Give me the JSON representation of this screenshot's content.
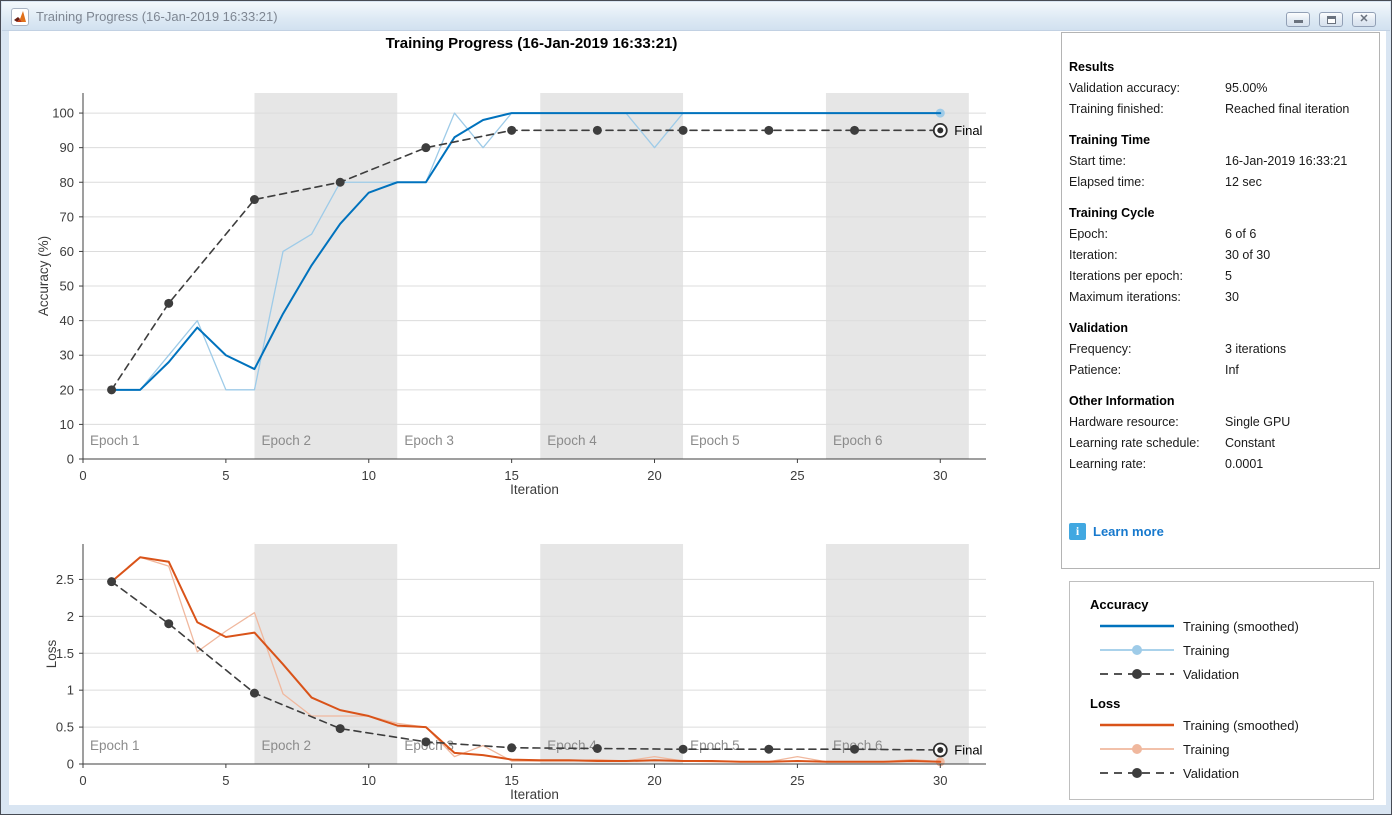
{
  "window": {
    "title": "Training Progress (16-Jan-2019 16:33:21)",
    "buttons": {
      "minimize": "minimize",
      "restore": "restore",
      "close": "✕"
    }
  },
  "main_title": "Training Progress (16-Jan-2019 16:33:21)",
  "info_panel": {
    "sections": [
      {
        "header": "Results",
        "rows": [
          [
            "Validation accuracy:",
            "95.00%"
          ],
          [
            "Training finished:",
            "Reached final iteration"
          ]
        ]
      },
      {
        "header": "Training Time",
        "rows": [
          [
            "Start time:",
            "16-Jan-2019 16:33:21"
          ],
          [
            "Elapsed time:",
            "12 sec"
          ]
        ]
      },
      {
        "header": "Training Cycle",
        "rows": [
          [
            "Epoch:",
            "6 of 6"
          ],
          [
            "Iteration:",
            "30 of 30"
          ],
          [
            "Iterations per epoch:",
            "5"
          ],
          [
            "Maximum iterations:",
            "30"
          ]
        ]
      },
      {
        "header": "Validation",
        "rows": [
          [
            "Frequency:",
            "3 iterations"
          ],
          [
            "Patience:",
            "Inf"
          ]
        ]
      },
      {
        "header": "Other Information",
        "rows": [
          [
            "Hardware resource:",
            "Single GPU"
          ],
          [
            "Learning rate schedule:",
            "Constant"
          ],
          [
            "Learning rate:",
            "0.0001"
          ]
        ]
      }
    ],
    "learn_more": "Learn more",
    "learn_more_icon": "i"
  },
  "legend": {
    "groups": [
      {
        "title": "Accuracy",
        "items": [
          {
            "label": "Training (smoothed)",
            "style": "solid",
            "color": "#0072bd"
          },
          {
            "label": "Training",
            "style": "dot-line",
            "color": "#9ecbe8"
          },
          {
            "label": "Validation",
            "style": "dashed-dot",
            "color": "#3d3d3d"
          }
        ]
      },
      {
        "title": "Loss",
        "items": [
          {
            "label": "Training (smoothed)",
            "style": "solid",
            "color": "#d95319"
          },
          {
            "label": "Training",
            "style": "dot-line",
            "color": "#f0b89e"
          },
          {
            "label": "Validation",
            "style": "dashed-dot",
            "color": "#3d3d3d"
          }
        ]
      }
    ]
  },
  "chart_data": [
    {
      "id": "accuracy",
      "type": "line",
      "xlabel": "Iteration",
      "ylabel": "Accuracy (%)",
      "xlim": [
        0,
        31.6
      ],
      "ylim": [
        0,
        105.8
      ],
      "xticks": [
        0,
        5,
        10,
        15,
        20,
        25,
        30
      ],
      "yticks": [
        0,
        10,
        20,
        30,
        40,
        50,
        60,
        70,
        80,
        90,
        100
      ],
      "grid": "horizontal",
      "epoch_bands": {
        "boundaries": [
          0,
          6,
          11,
          16,
          21,
          26,
          31
        ],
        "labels": [
          "Epoch 1",
          "Epoch 2",
          "Epoch 3",
          "Epoch 4",
          "Epoch 5",
          "Epoch 6"
        ],
        "band_color": "#e6e6e6",
        "label_color": "#8b8b8b"
      },
      "series": [
        {
          "name": "Training (smoothed)",
          "color": "#0072bd",
          "width": 2,
          "x": [
            1,
            2,
            3,
            4,
            5,
            6,
            7,
            8,
            9,
            10,
            11,
            12,
            13,
            14,
            15,
            16,
            17,
            18,
            19,
            20,
            21,
            22,
            23,
            24,
            25,
            26,
            27,
            28,
            29,
            30
          ],
          "y": [
            20,
            20,
            28,
            38,
            30,
            26,
            42,
            56,
            68,
            77,
            80,
            80,
            93,
            98,
            100,
            100,
            100,
            100,
            100,
            100,
            100,
            100,
            100,
            100,
            100,
            100,
            100,
            100,
            100,
            100
          ]
        },
        {
          "name": "Training",
          "color": "#9ecbe8",
          "width": 1.3,
          "end_dot": true,
          "x": [
            1,
            2,
            3,
            4,
            5,
            6,
            7,
            8,
            9,
            10,
            11,
            12,
            13,
            14,
            15,
            16,
            17,
            18,
            19,
            20,
            21,
            22,
            23,
            24,
            25,
            26,
            27,
            28,
            29,
            30
          ],
          "y": [
            20,
            20,
            30,
            40,
            20,
            20,
            60,
            65,
            80,
            80,
            80,
            80,
            100,
            90,
            100,
            100,
            100,
            100,
            100,
            90,
            100,
            100,
            100,
            100,
            100,
            100,
            100,
            100,
            100,
            100
          ]
        },
        {
          "name": "Validation",
          "color": "#3d3d3d",
          "width": 1.6,
          "dash": "7,5",
          "marker": true,
          "x": [
            1,
            3,
            6,
            9,
            12,
            15,
            18,
            21,
            24,
            27,
            30
          ],
          "y": [
            20,
            45,
            75,
            80,
            90,
            95,
            95,
            95,
            95,
            95,
            95
          ]
        }
      ],
      "final_label": "Final",
      "final_point": {
        "x": 30,
        "y": 95
      }
    },
    {
      "id": "loss",
      "type": "line",
      "xlabel": "Iteration",
      "ylabel": "Loss",
      "xlim": [
        0,
        31.6
      ],
      "ylim": [
        0,
        2.98
      ],
      "xticks": [
        0,
        5,
        10,
        15,
        20,
        25,
        30
      ],
      "yticks": [
        0,
        0.5,
        1,
        1.5,
        2,
        2.5
      ],
      "grid": "horizontal",
      "epoch_bands": {
        "boundaries": [
          0,
          6,
          11,
          16,
          21,
          26,
          31
        ],
        "labels": [
          "Epoch 1",
          "Epoch 2",
          "Epoch 3",
          "Epoch 4",
          "Epoch 5",
          "Epoch 6"
        ],
        "band_color": "#e6e6e6",
        "label_color": "#8b8b8b"
      },
      "series": [
        {
          "name": "Training (smoothed)",
          "color": "#d95319",
          "width": 2,
          "x": [
            1,
            2,
            3,
            4,
            5,
            6,
            7,
            8,
            9,
            10,
            11,
            12,
            13,
            14,
            15,
            16,
            17,
            18,
            19,
            20,
            21,
            22,
            23,
            24,
            25,
            26,
            27,
            28,
            29,
            30
          ],
          "y": [
            2.47,
            2.8,
            2.74,
            1.92,
            1.72,
            1.78,
            1.35,
            0.9,
            0.73,
            0.65,
            0.52,
            0.5,
            0.15,
            0.12,
            0.06,
            0.05,
            0.05,
            0.04,
            0.04,
            0.05,
            0.04,
            0.04,
            0.03,
            0.03,
            0.04,
            0.03,
            0.03,
            0.03,
            0.04,
            0.03
          ]
        },
        {
          "name": "Training",
          "color": "#f0b89e",
          "width": 1.3,
          "end_dot": true,
          "x": [
            1,
            2,
            3,
            4,
            5,
            6,
            7,
            8,
            9,
            10,
            11,
            12,
            13,
            14,
            15,
            16,
            17,
            18,
            19,
            20,
            21,
            22,
            23,
            24,
            25,
            26,
            27,
            28,
            29,
            30
          ],
          "y": [
            2.47,
            2.8,
            2.68,
            1.52,
            1.8,
            2.05,
            0.95,
            0.65,
            0.65,
            0.65,
            0.55,
            0.5,
            0.1,
            0.25,
            0.04,
            0.04,
            0.04,
            0.06,
            0.04,
            0.1,
            0.04,
            0.03,
            0.03,
            0.03,
            0.1,
            0.03,
            0.03,
            0.03,
            0.06,
            0.03
          ]
        },
        {
          "name": "Validation",
          "color": "#3d3d3d",
          "width": 1.6,
          "dash": "7,5",
          "marker": true,
          "x": [
            1,
            3,
            6,
            9,
            12,
            15,
            18,
            21,
            24,
            27,
            30
          ],
          "y": [
            2.47,
            1.9,
            0.96,
            0.48,
            0.3,
            0.22,
            0.21,
            0.2,
            0.2,
            0.2,
            0.19
          ]
        }
      ],
      "final_label": "Final",
      "final_point": {
        "x": 30,
        "y": 0.19
      }
    }
  ]
}
